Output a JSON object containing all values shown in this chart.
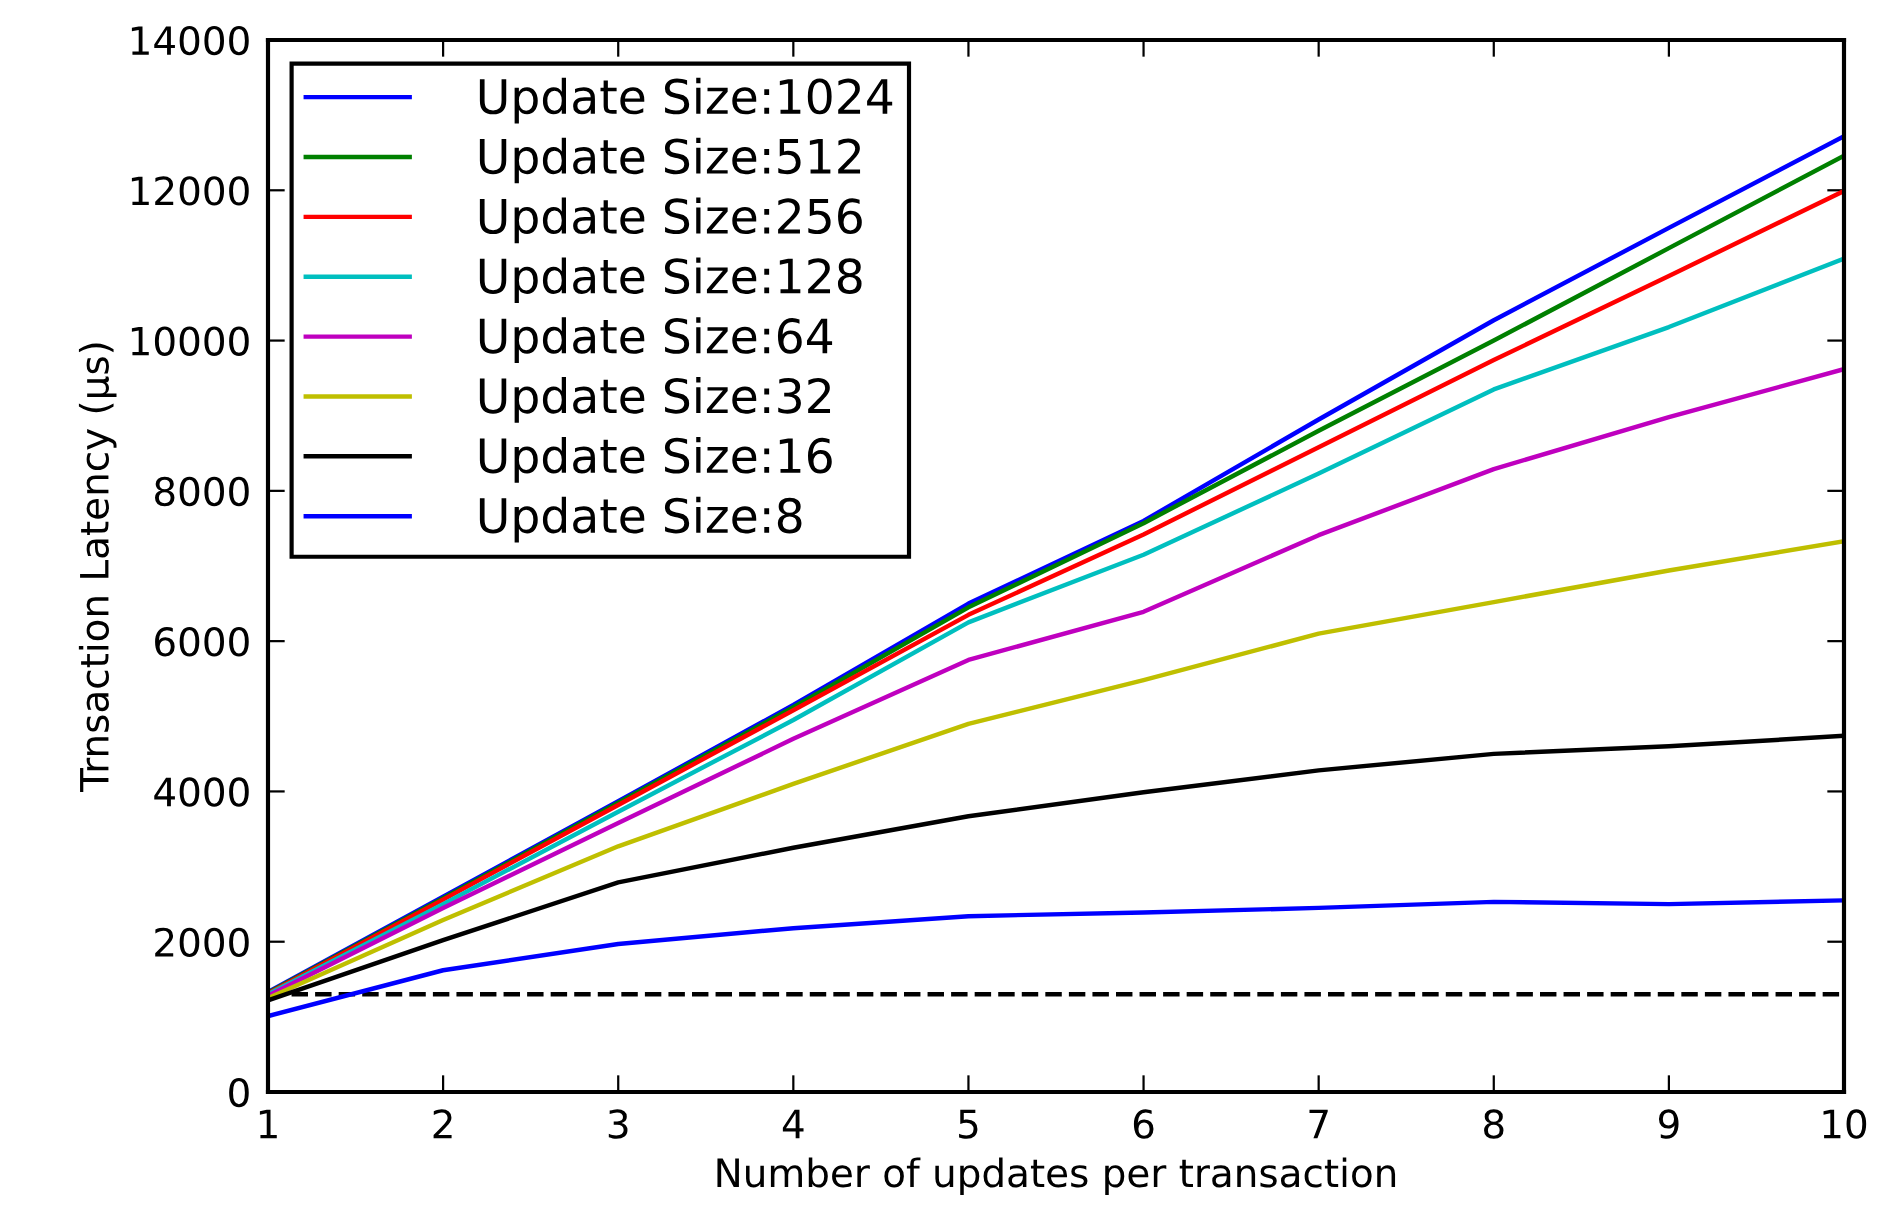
{
  "chart_data": {
    "type": "line",
    "xlabel": "Number of updates per transaction",
    "ylabel": "Trnsaction Latency (μs)",
    "x": [
      1,
      2,
      3,
      4,
      5,
      6,
      7,
      8,
      9,
      10
    ],
    "xlim": [
      1,
      10
    ],
    "xticks": [
      1,
      2,
      3,
      4,
      5,
      6,
      7,
      8,
      9,
      10
    ],
    "ylim": [
      0,
      14000
    ],
    "yticks": [
      0,
      2000,
      4000,
      6000,
      8000,
      10000,
      12000,
      14000
    ],
    "grid": false,
    "legend": "top left",
    "marker": "none",
    "line_style": "solid",
    "ref_lines": [
      {
        "axis": "y",
        "value": 1300,
        "color": "#000000",
        "line_style": "dashed"
      }
    ],
    "series": [
      {
        "name": "Update Size:1024",
        "color": "#0000ff",
        "values": [
          1330,
          2600,
          3870,
          5150,
          6500,
          7600,
          8950,
          10270,
          11500,
          12720
        ]
      },
      {
        "name": "Update Size:512",
        "color": "#008000",
        "values": [
          1320,
          2580,
          3850,
          5120,
          6450,
          7570,
          8800,
          10000,
          11230,
          12460
        ]
      },
      {
        "name": "Update Size:256",
        "color": "#ff0000",
        "values": [
          1310,
          2560,
          3820,
          5080,
          6350,
          7420,
          8580,
          9740,
          10860,
          11990
        ]
      },
      {
        "name": "Update Size:128",
        "color": "#00bfbf",
        "values": [
          1300,
          2500,
          3730,
          4950,
          6250,
          7150,
          8230,
          9350,
          10180,
          11090
        ]
      },
      {
        "name": "Update Size:64",
        "color": "#bf00bf",
        "values": [
          1280,
          2450,
          3580,
          4700,
          5750,
          6390,
          7410,
          8290,
          8980,
          9620
        ]
      },
      {
        "name": "Update Size:32",
        "color": "#bfbf00",
        "values": [
          1250,
          2290,
          3270,
          4100,
          4900,
          5480,
          6100,
          6520,
          6940,
          7330
        ]
      },
      {
        "name": "Update Size:16",
        "color": "#000000",
        "values": [
          1220,
          2020,
          2790,
          3250,
          3670,
          3990,
          4280,
          4500,
          4600,
          4740
        ]
      },
      {
        "name": "Update Size:8",
        "color": "#0000ff",
        "values": [
          1010,
          1620,
          1970,
          2180,
          2340,
          2390,
          2450,
          2530,
          2500,
          2550
        ]
      }
    ]
  }
}
